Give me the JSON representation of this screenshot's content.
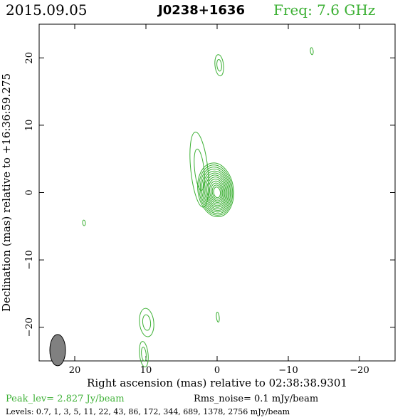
{
  "header": {
    "date": "2015.09.05",
    "source": "J0238+1636",
    "freq": "Freq: 7.6 GHz"
  },
  "footer": {
    "peak": "Peak_lev=  2.827 Jy/beam",
    "rms": "Rms_noise=  0.1 mJy/beam",
    "levels": "Levels: 0.7,   1,   3,   5,   11,   22,   43,   86,  172,  344,  689,  1378,  2756 mJy/beam"
  },
  "colors": {
    "contour": "#3cb034",
    "beam": "#808080",
    "text": "#000000"
  },
  "chart_data": {
    "type": "contour",
    "title": "J0238+1636",
    "xlabel": "Right ascension (mas) relative to 02:38:38.9301",
    "ylabel": "Declination (mas) relative to +16:36:59.275",
    "xlim": [
      25,
      -25
    ],
    "ylim": [
      -25,
      25
    ],
    "xticks": [
      20,
      10,
      0,
      -10,
      -20
    ],
    "xtick_labels": [
      "20",
      "10",
      "0",
      "−10",
      "−20"
    ],
    "yticks": [
      20,
      10,
      0,
      -10,
      -20
    ],
    "ytick_labels": [
      "20",
      "10",
      "0",
      "−10",
      "−20"
    ],
    "grid": false,
    "levels_mJy": [
      0.7,
      1,
      3,
      5,
      11,
      22,
      43,
      86,
      172,
      344,
      689,
      1378,
      2756
    ],
    "peak_Jy_per_beam": 2.827,
    "rms_noise_mJy_per_beam": 0.1,
    "core": {
      "x": 0,
      "y": 0,
      "n_levels": 13
    },
    "beam": {
      "x": 22.4,
      "y": -23.4,
      "major": 2.2,
      "minor": 1.1,
      "pa": 0
    },
    "features": [
      {
        "x": -0.3,
        "y": 18.9,
        "dx": 0.6,
        "dy": 1.5,
        "n": 2
      },
      {
        "x": -13.3,
        "y": 21.0,
        "dx": 0.2,
        "dy": 0.5,
        "n": 1
      },
      {
        "x": 18.7,
        "y": -4.5,
        "dx": 0.2,
        "dy": 0.4,
        "n": 1
      },
      {
        "x": -0.1,
        "y": -18.5,
        "dx": 0.2,
        "dy": 0.7,
        "n": 1
      },
      {
        "x": 9.9,
        "y": -19.3,
        "dx": 1.0,
        "dy": 2.0,
        "n": 2
      },
      {
        "x": 10.3,
        "y": -24.0,
        "dx": 0.6,
        "dy": 1.8,
        "n": 2
      },
      {
        "x": 2.5,
        "y": 3.4,
        "dx": 1.2,
        "dy": 5.3,
        "n": 2
      }
    ]
  }
}
